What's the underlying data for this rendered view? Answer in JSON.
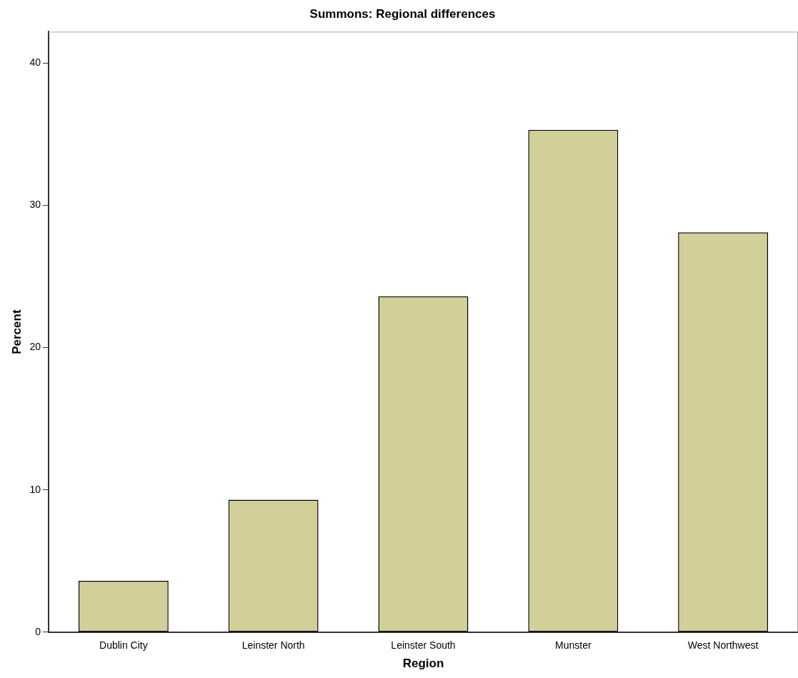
{
  "chart_data": {
    "type": "bar",
    "title": "Summons: Regional differences",
    "xlabel": "Region",
    "ylabel": "Percent",
    "categories": [
      "Dublin City",
      "Leinster North",
      "Leinster South",
      "Munster",
      "West Northwest"
    ],
    "values": [
      3.6,
      9.3,
      23.6,
      35.3,
      28.1
    ],
    "color": "#d3cf98",
    "ylim": [
      0,
      42.2
    ],
    "yticks": [
      0,
      10,
      20,
      30,
      40
    ],
    "grid": false,
    "legend": false
  }
}
